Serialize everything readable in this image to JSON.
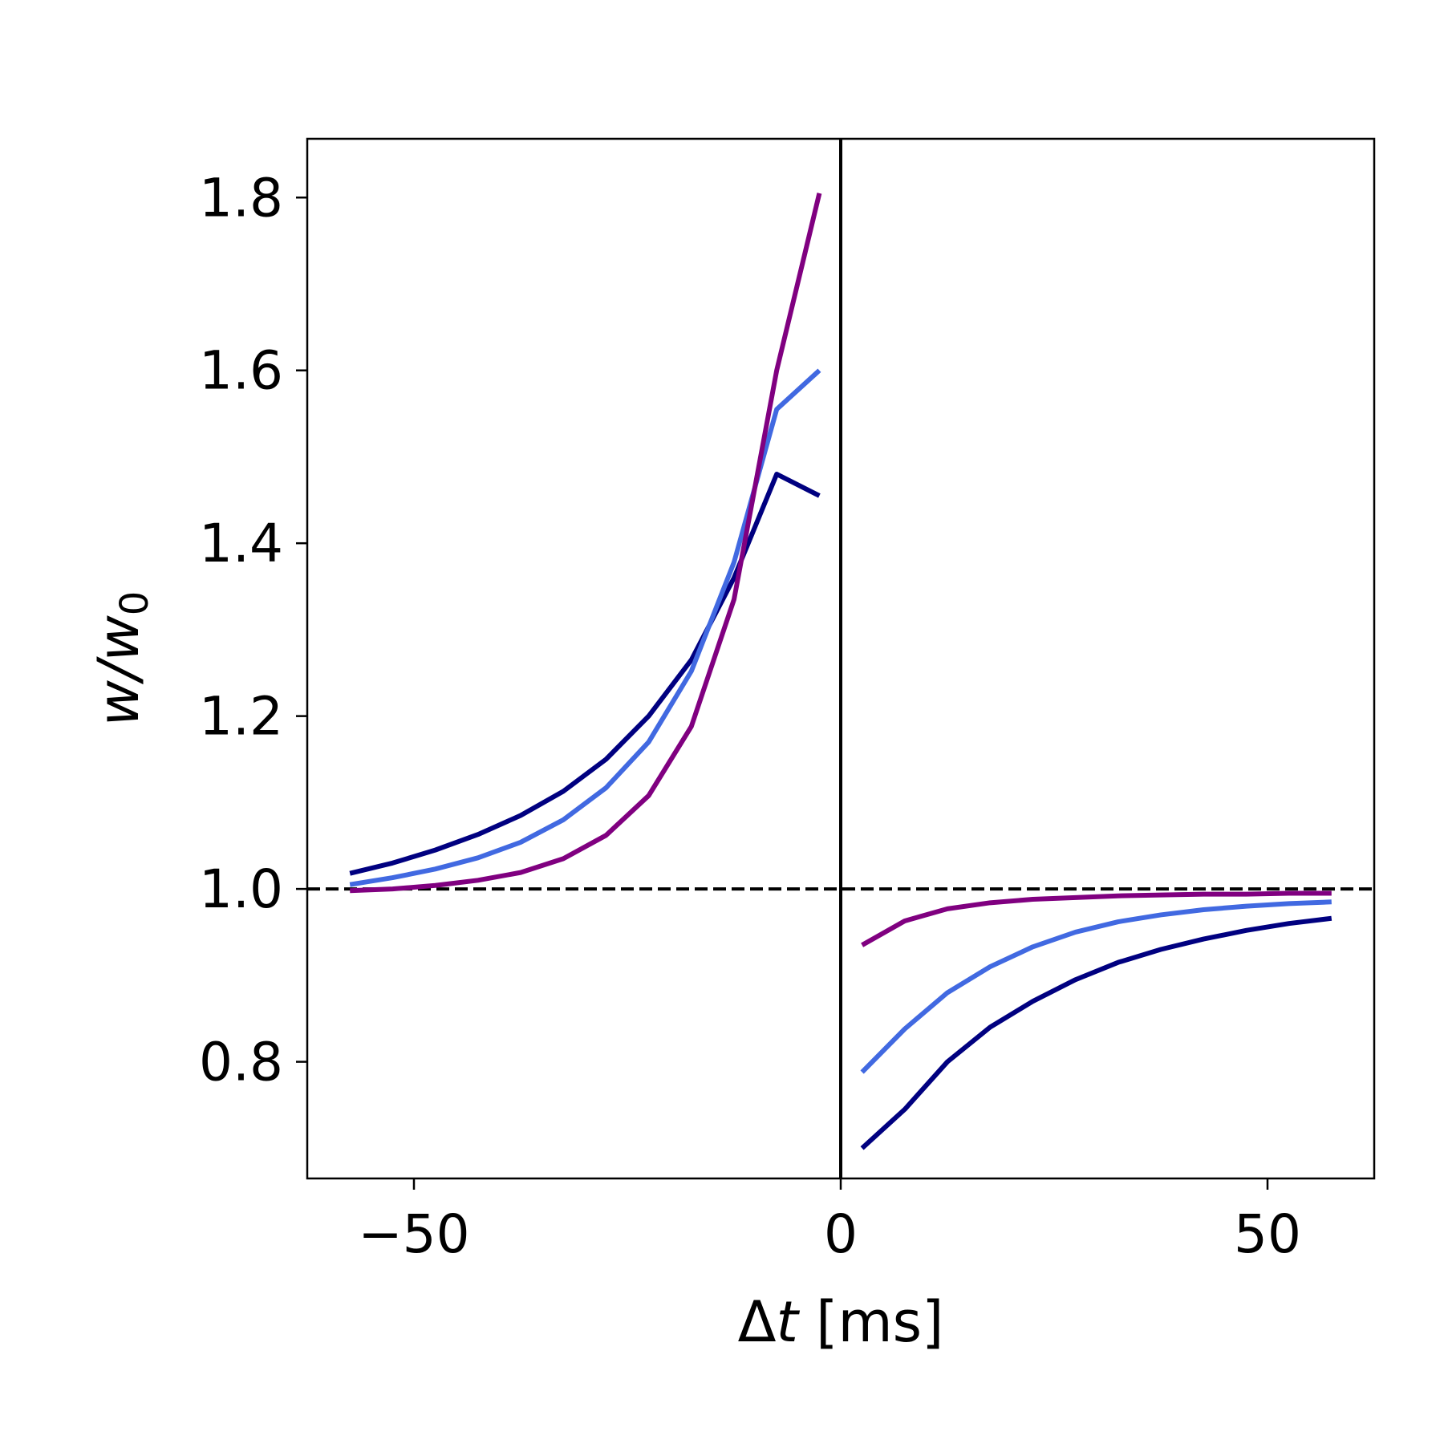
{
  "chart_data": {
    "type": "line",
    "xlabel_prefix": "Δ",
    "xlabel_var": "t",
    "xlabel_suffix": " [ms]",
    "ylabel_main": "w/w",
    "ylabel_sub": "0",
    "xlim": [
      -62.5,
      62.5
    ],
    "ylim": [
      0.665,
      1.868
    ],
    "xticks": [
      -50,
      0,
      50
    ],
    "xtick_labels": [
      "−50",
      "0",
      "50"
    ],
    "yticks": [
      0.8,
      1.0,
      1.2,
      1.4,
      1.6,
      1.8
    ],
    "ytick_labels": [
      "0.8",
      "1.0",
      "1.2",
      "1.4",
      "1.6",
      "1.8"
    ],
    "grid": false,
    "reference_lines": [
      {
        "orientation": "horizontal",
        "value": 1.0,
        "style": "dashed",
        "color": "#000000"
      },
      {
        "orientation": "vertical",
        "value": 0,
        "style": "solid",
        "color": "#000000"
      }
    ],
    "series": [
      {
        "color": "#000080",
        "segments": [
          {
            "x": [
              -57.5,
              -52.5,
              -47.5,
              -42.5,
              -37.5,
              -32.5,
              -27.5,
              -22.5,
              -17.5,
              -12.5,
              -7.5,
              -2.5
            ],
            "y": [
              1.018,
              1.03,
              1.045,
              1.063,
              1.085,
              1.113,
              1.15,
              1.2,
              1.265,
              1.36,
              1.48,
              1.455
            ]
          },
          {
            "x": [
              2.5,
              7.5,
              12.5,
              17.5,
              22.5,
              27.5,
              32.5,
              37.5,
              42.5,
              47.5,
              52.5,
              57.5
            ],
            "y": [
              0.7,
              0.745,
              0.8,
              0.84,
              0.87,
              0.895,
              0.915,
              0.93,
              0.942,
              0.952,
              0.96,
              0.966
            ]
          }
        ]
      },
      {
        "color": "#4169E1",
        "segments": [
          {
            "x": [
              -57.5,
              -52.5,
              -47.5,
              -42.5,
              -37.5,
              -32.5,
              -27.5,
              -22.5,
              -17.5,
              -12.5,
              -7.5,
              -2.5
            ],
            "y": [
              1.005,
              1.013,
              1.023,
              1.036,
              1.054,
              1.08,
              1.117,
              1.17,
              1.252,
              1.378,
              1.555,
              1.6
            ]
          },
          {
            "x": [
              2.5,
              7.5,
              12.5,
              17.5,
              22.5,
              27.5,
              32.5,
              37.5,
              42.5,
              47.5,
              52.5,
              57.5
            ],
            "y": [
              0.788,
              0.838,
              0.88,
              0.91,
              0.933,
              0.95,
              0.962,
              0.97,
              0.976,
              0.98,
              0.983,
              0.985
            ]
          }
        ]
      },
      {
        "color": "#800080",
        "segments": [
          {
            "x": [
              -57.5,
              -52.5,
              -47.5,
              -42.5,
              -37.5,
              -32.5,
              -27.5,
              -22.5,
              -17.5,
              -12.5,
              -7.5,
              -2.5
            ],
            "y": [
              0.998,
              1.0,
              1.004,
              1.01,
              1.019,
              1.035,
              1.062,
              1.108,
              1.188,
              1.335,
              1.6,
              1.805
            ]
          },
          {
            "x": [
              2.5,
              7.5,
              12.5,
              17.5,
              22.5,
              27.5,
              32.5,
              37.5,
              42.5,
              47.5,
              52.5,
              57.5
            ],
            "y": [
              0.935,
              0.963,
              0.977,
              0.984,
              0.988,
              0.99,
              0.992,
              0.993,
              0.994,
              0.994,
              0.995,
              0.995
            ]
          }
        ]
      }
    ]
  }
}
